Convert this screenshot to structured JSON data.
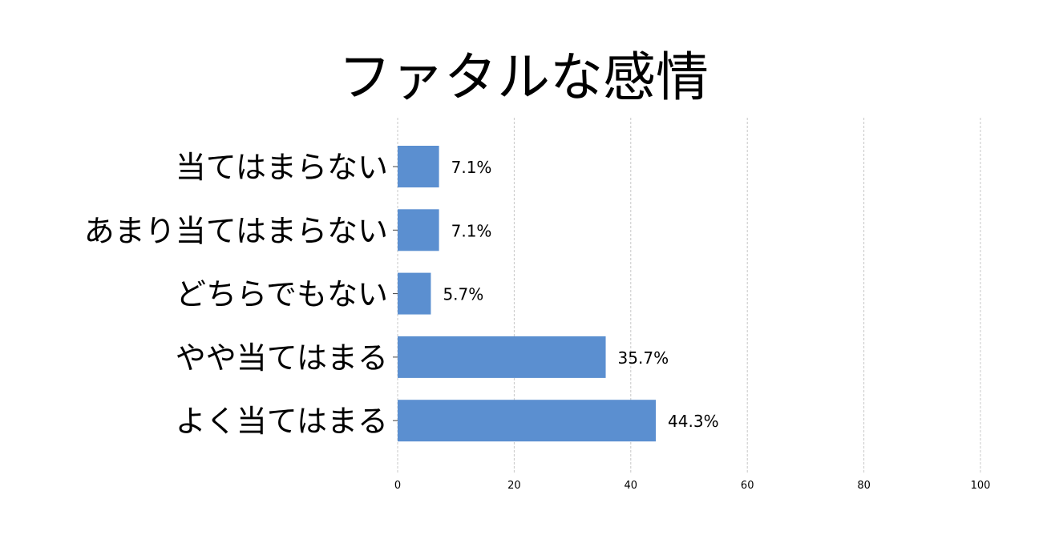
{
  "chart_data": {
    "type": "bar",
    "orientation": "horizontal",
    "title": "ファタルな感情",
    "categories": [
      "当てはまらない",
      "あまり当てはまらない",
      "どちらでもない",
      "やや当てはまる",
      "よく当てはまる"
    ],
    "values": [
      7.1,
      7.1,
      5.7,
      35.7,
      44.3
    ],
    "value_labels": [
      "7.1%",
      "7.1%",
      "5.7%",
      "35.7%",
      "44.3%"
    ],
    "xlim": [
      0,
      100
    ],
    "xticks": [
      0,
      20,
      40,
      60,
      80,
      100
    ],
    "xlabel": "",
    "ylabel": "",
    "grid": "vertical dashed",
    "bar_color": "#5b8fd0"
  }
}
